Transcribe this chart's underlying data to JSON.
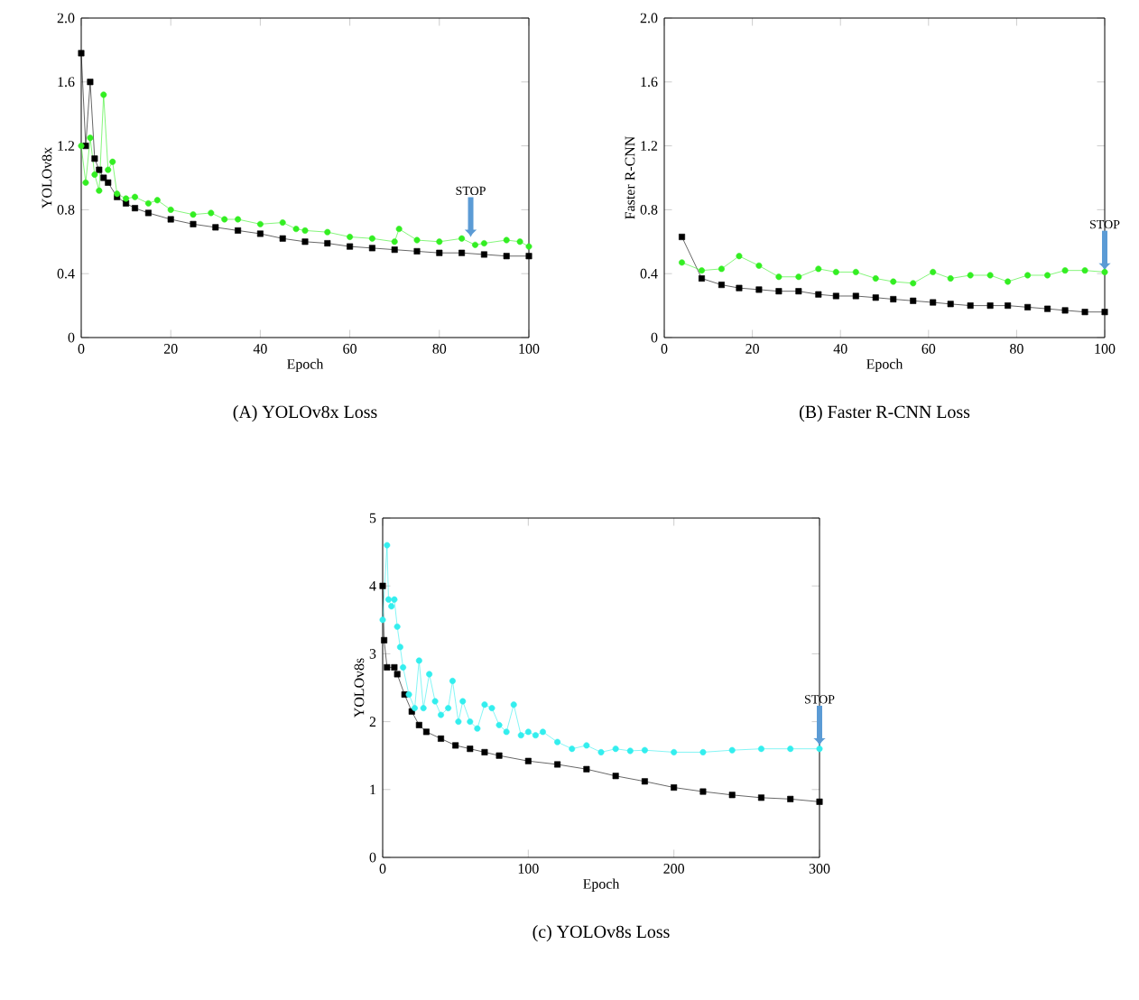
{
  "chart_data": [
    {
      "type": "line",
      "title": "(A)    YOLOv8x Loss",
      "xlabel": "Epoch",
      "ylabel": "YOLOv8x",
      "xlim": [
        0,
        100
      ],
      "ylim": [
        0,
        2
      ],
      "xticks": [
        0,
        20,
        40,
        60,
        80,
        100
      ],
      "yticks": [
        0,
        0.4,
        0.8,
        1.2,
        1.6,
        {
          "value": 2,
          "label": "2.0"
        }
      ],
      "line_style": "solid",
      "annotations": [
        {
          "text": "STOP",
          "x": 87,
          "y": 0.63
        }
      ],
      "series": [
        {
          "color": "#000000",
          "marker": "square",
          "x": [
            0,
            1,
            2,
            3,
            4,
            5,
            6,
            8,
            10,
            12,
            15,
            20,
            25,
            30,
            35,
            40,
            45,
            50,
            55,
            60,
            65,
            70,
            75,
            80,
            85,
            90,
            95,
            100
          ],
          "values": [
            1.78,
            1.2,
            1.6,
            1.12,
            1.05,
            1.0,
            0.97,
            0.88,
            0.84,
            0.81,
            0.78,
            0.74,
            0.71,
            0.69,
            0.67,
            0.65,
            0.62,
            0.6,
            0.59,
            0.57,
            0.56,
            0.55,
            0.54,
            0.53,
            0.53,
            0.52,
            0.51,
            0.51
          ]
        },
        {
          "color": "#33ee22",
          "marker": "circle",
          "x": [
            0,
            1,
            2,
            3,
            4,
            5,
            6,
            7,
            8,
            10,
            12,
            15,
            17,
            20,
            25,
            29,
            32,
            35,
            40,
            45,
            48,
            50,
            55,
            60,
            65,
            70,
            71,
            75,
            80,
            85,
            88,
            90,
            95,
            98,
            100
          ],
          "values": [
            1.2,
            0.97,
            1.25,
            1.02,
            0.92,
            1.52,
            1.05,
            1.1,
            0.9,
            0.87,
            0.88,
            0.84,
            0.86,
            0.8,
            0.77,
            0.78,
            0.74,
            0.74,
            0.71,
            0.72,
            0.68,
            0.67,
            0.66,
            0.63,
            0.62,
            0.6,
            0.68,
            0.61,
            0.6,
            0.62,
            0.58,
            0.59,
            0.61,
            0.6,
            0.57
          ]
        }
      ]
    },
    {
      "type": "line",
      "title": "(B)    Faster R-CNN Loss",
      "xlabel": "Epoch",
      "ylabel": "Faster R-CNN",
      "xlim": [
        0,
        100
      ],
      "ylim": [
        0,
        2
      ],
      "xticks": [
        0,
        20,
        40,
        60,
        80,
        100
      ],
      "yticks": [
        0,
        0.4,
        0.8,
        1.2,
        1.6,
        {
          "value": 2,
          "label": "2.0"
        }
      ],
      "line_style": "solid",
      "annotations": [
        {
          "text": "STOP",
          "x": 100,
          "y": 0.42
        }
      ],
      "series": [
        {
          "color": "#000000",
          "marker": "square",
          "x": [
            4,
            8.5,
            13,
            17,
            21.5,
            26,
            30.5,
            35,
            39,
            43.5,
            48,
            52,
            56.5,
            61,
            65,
            69.5,
            74,
            78,
            82.5,
            87,
            91,
            95.5,
            100
          ],
          "values": [
            0.63,
            0.37,
            0.33,
            0.31,
            0.3,
            0.29,
            0.29,
            0.27,
            0.26,
            0.26,
            0.25,
            0.24,
            0.23,
            0.22,
            0.21,
            0.2,
            0.2,
            0.2,
            0.19,
            0.18,
            0.17,
            0.16,
            0.16
          ]
        },
        {
          "color": "#33ee22",
          "marker": "circle",
          "x": [
            4,
            8.5,
            13,
            17,
            21.5,
            26,
            30.5,
            35,
            39,
            43.5,
            48,
            52,
            56.5,
            61,
            65,
            69.5,
            74,
            78,
            82.5,
            87,
            91,
            95.5,
            100
          ],
          "values": [
            0.47,
            0.42,
            0.43,
            0.51,
            0.45,
            0.38,
            0.38,
            0.43,
            0.41,
            0.41,
            0.37,
            0.35,
            0.34,
            0.41,
            0.37,
            0.39,
            0.39,
            0.35,
            0.39,
            0.39,
            0.42,
            0.42,
            0.41
          ]
        }
      ]
    },
    {
      "type": "line",
      "title": "(c) YOLOv8s Loss",
      "xlabel": "Epoch",
      "ylabel": "YOLOv8s",
      "xlim": [
        0,
        300
      ],
      "ylim": [
        0,
        5
      ],
      "xticks": [
        0,
        100,
        200,
        300
      ],
      "yticks": [
        0,
        1,
        2,
        3,
        4,
        5
      ],
      "line_style": "solid",
      "annotations": [
        {
          "text": "STOP",
          "x": 300,
          "y": 1.65
        }
      ],
      "series": [
        {
          "color": "#000000",
          "marker": "square",
          "x": [
            0,
            1,
            3,
            8,
            10,
            15,
            20,
            25,
            30,
            40,
            50,
            60,
            70,
            80,
            100,
            120,
            140,
            160,
            180,
            200,
            220,
            240,
            260,
            280,
            300
          ],
          "values": [
            4.0,
            3.2,
            2.8,
            2.8,
            2.7,
            2.4,
            2.15,
            1.95,
            1.85,
            1.75,
            1.65,
            1.6,
            1.55,
            1.5,
            1.42,
            1.37,
            1.3,
            1.2,
            1.12,
            1.03,
            0.97,
            0.92,
            0.88,
            0.86,
            0.82
          ]
        },
        {
          "color": "#33eeee",
          "marker": "circle",
          "x": [
            0,
            3,
            4,
            6,
            8,
            10,
            12,
            14,
            18,
            22,
            25,
            28,
            32,
            36,
            40,
            45,
            48,
            52,
            55,
            60,
            65,
            70,
            75,
            80,
            85,
            90,
            95,
            100,
            105,
            110,
            120,
            130,
            140,
            150,
            160,
            170,
            180,
            200,
            220,
            240,
            260,
            280,
            300
          ],
          "values": [
            3.5,
            4.6,
            3.8,
            3.7,
            3.8,
            3.4,
            3.1,
            2.8,
            2.4,
            2.2,
            2.9,
            2.2,
            2.7,
            2.3,
            2.1,
            2.2,
            2.6,
            2.0,
            2.3,
            2.0,
            1.9,
            2.25,
            2.2,
            1.95,
            1.85,
            2.25,
            1.8,
            1.85,
            1.8,
            1.85,
            1.7,
            1.6,
            1.65,
            1.55,
            1.6,
            1.57,
            1.58,
            1.55,
            1.55,
            1.58,
            1.6,
            1.6,
            1.6
          ]
        }
      ]
    }
  ]
}
